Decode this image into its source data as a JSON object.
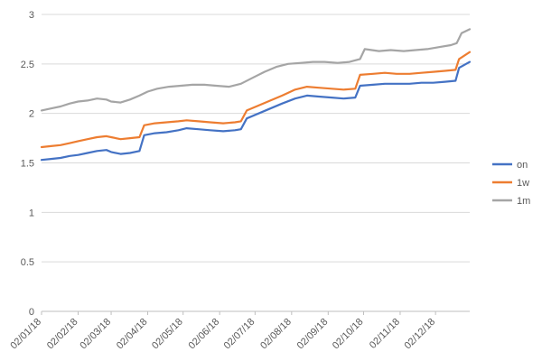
{
  "chart_data": {
    "type": "line",
    "title": "",
    "xlabel": "",
    "ylabel": "",
    "ylim": [
      0,
      3
    ],
    "y_ticks": [
      0,
      0.5,
      1,
      1.5,
      2,
      2.5,
      3
    ],
    "y_tick_labels": [
      "0",
      "0.5",
      "1",
      "1.5",
      "2",
      "2.5",
      "3"
    ],
    "grid": true,
    "legend_position": "right",
    "x_tick_labels": [
      "02/01/18",
      "02/02/18",
      "02/03/18",
      "02/04/18",
      "02/05/18",
      "02/06/18",
      "02/07/18",
      "02/08/18",
      "02/09/18",
      "02/10/18",
      "02/11/18",
      "02/12/18"
    ],
    "x_range": [
      "2018-01-02",
      "2018-12-31"
    ],
    "series": [
      {
        "name": "on",
        "color": "#4472C4",
        "points": [
          [
            "2018-01-02",
            1.53
          ],
          [
            "2018-01-10",
            1.54
          ],
          [
            "2018-01-18",
            1.55
          ],
          [
            "2018-01-26",
            1.57
          ],
          [
            "2018-02-02",
            1.58
          ],
          [
            "2018-02-10",
            1.6
          ],
          [
            "2018-02-18",
            1.62
          ],
          [
            "2018-02-26",
            1.63
          ],
          [
            "2018-03-02",
            1.61
          ],
          [
            "2018-03-10",
            1.59
          ],
          [
            "2018-03-18",
            1.6
          ],
          [
            "2018-03-26",
            1.62
          ],
          [
            "2018-03-30",
            1.78
          ],
          [
            "2018-04-08",
            1.8
          ],
          [
            "2018-04-18",
            1.81
          ],
          [
            "2018-04-28",
            1.83
          ],
          [
            "2018-05-05",
            1.85
          ],
          [
            "2018-05-15",
            1.84
          ],
          [
            "2018-05-25",
            1.83
          ],
          [
            "2018-06-05",
            1.82
          ],
          [
            "2018-06-15",
            1.83
          ],
          [
            "2018-06-20",
            1.84
          ],
          [
            "2018-06-25",
            1.95
          ],
          [
            "2018-07-05",
            2.0
          ],
          [
            "2018-07-15",
            2.05
          ],
          [
            "2018-07-25",
            2.1
          ],
          [
            "2018-08-05",
            2.15
          ],
          [
            "2018-08-15",
            2.18
          ],
          [
            "2018-08-25",
            2.17
          ],
          [
            "2018-09-05",
            2.16
          ],
          [
            "2018-09-15",
            2.15
          ],
          [
            "2018-09-25",
            2.16
          ],
          [
            "2018-09-29",
            2.28
          ],
          [
            "2018-10-10",
            2.29
          ],
          [
            "2018-10-20",
            2.3
          ],
          [
            "2018-10-30",
            2.3
          ],
          [
            "2018-11-10",
            2.3
          ],
          [
            "2018-11-20",
            2.31
          ],
          [
            "2018-11-30",
            2.31
          ],
          [
            "2018-12-10",
            2.32
          ],
          [
            "2018-12-19",
            2.33
          ],
          [
            "2018-12-22",
            2.46
          ],
          [
            "2018-12-31",
            2.52
          ]
        ]
      },
      {
        "name": "1w",
        "color": "#ED7D31",
        "points": [
          [
            "2018-01-02",
            1.66
          ],
          [
            "2018-01-10",
            1.67
          ],
          [
            "2018-01-18",
            1.68
          ],
          [
            "2018-01-26",
            1.7
          ],
          [
            "2018-02-02",
            1.72
          ],
          [
            "2018-02-10",
            1.74
          ],
          [
            "2018-02-18",
            1.76
          ],
          [
            "2018-02-26",
            1.77
          ],
          [
            "2018-03-02",
            1.76
          ],
          [
            "2018-03-10",
            1.74
          ],
          [
            "2018-03-18",
            1.75
          ],
          [
            "2018-03-26",
            1.76
          ],
          [
            "2018-03-30",
            1.88
          ],
          [
            "2018-04-08",
            1.9
          ],
          [
            "2018-04-18",
            1.91
          ],
          [
            "2018-04-28",
            1.92
          ],
          [
            "2018-05-05",
            1.93
          ],
          [
            "2018-05-15",
            1.92
          ],
          [
            "2018-05-25",
            1.91
          ],
          [
            "2018-06-05",
            1.9
          ],
          [
            "2018-06-15",
            1.91
          ],
          [
            "2018-06-20",
            1.92
          ],
          [
            "2018-06-25",
            2.03
          ],
          [
            "2018-07-05",
            2.08
          ],
          [
            "2018-07-15",
            2.13
          ],
          [
            "2018-07-25",
            2.18
          ],
          [
            "2018-08-05",
            2.24
          ],
          [
            "2018-08-15",
            2.27
          ],
          [
            "2018-08-25",
            2.26
          ],
          [
            "2018-09-05",
            2.25
          ],
          [
            "2018-09-15",
            2.24
          ],
          [
            "2018-09-25",
            2.25
          ],
          [
            "2018-09-29",
            2.39
          ],
          [
            "2018-10-10",
            2.4
          ],
          [
            "2018-10-20",
            2.41
          ],
          [
            "2018-10-30",
            2.4
          ],
          [
            "2018-11-10",
            2.4
          ],
          [
            "2018-11-20",
            2.41
          ],
          [
            "2018-11-30",
            2.42
          ],
          [
            "2018-12-10",
            2.43
          ],
          [
            "2018-12-19",
            2.44
          ],
          [
            "2018-12-22",
            2.55
          ],
          [
            "2018-12-31",
            2.62
          ]
        ]
      },
      {
        "name": "1m",
        "color": "#A5A5A5",
        "points": [
          [
            "2018-01-02",
            2.03
          ],
          [
            "2018-01-10",
            2.05
          ],
          [
            "2018-01-18",
            2.07
          ],
          [
            "2018-01-26",
            2.1
          ],
          [
            "2018-02-02",
            2.12
          ],
          [
            "2018-02-10",
            2.13
          ],
          [
            "2018-02-18",
            2.15
          ],
          [
            "2018-02-26",
            2.14
          ],
          [
            "2018-03-02",
            2.12
          ],
          [
            "2018-03-10",
            2.11
          ],
          [
            "2018-03-18",
            2.14
          ],
          [
            "2018-03-26",
            2.18
          ],
          [
            "2018-04-02",
            2.22
          ],
          [
            "2018-04-10",
            2.25
          ],
          [
            "2018-04-20",
            2.27
          ],
          [
            "2018-04-30",
            2.28
          ],
          [
            "2018-05-10",
            2.29
          ],
          [
            "2018-05-20",
            2.29
          ],
          [
            "2018-05-30",
            2.28
          ],
          [
            "2018-06-10",
            2.27
          ],
          [
            "2018-06-20",
            2.3
          ],
          [
            "2018-06-30",
            2.36
          ],
          [
            "2018-07-10",
            2.42
          ],
          [
            "2018-07-20",
            2.47
          ],
          [
            "2018-07-30",
            2.5
          ],
          [
            "2018-08-10",
            2.51
          ],
          [
            "2018-08-20",
            2.52
          ],
          [
            "2018-08-30",
            2.52
          ],
          [
            "2018-09-10",
            2.51
          ],
          [
            "2018-09-20",
            2.52
          ],
          [
            "2018-09-29",
            2.55
          ],
          [
            "2018-10-03",
            2.65
          ],
          [
            "2018-10-15",
            2.63
          ],
          [
            "2018-10-25",
            2.64
          ],
          [
            "2018-11-05",
            2.63
          ],
          [
            "2018-11-15",
            2.64
          ],
          [
            "2018-11-25",
            2.65
          ],
          [
            "2018-12-05",
            2.67
          ],
          [
            "2018-12-15",
            2.69
          ],
          [
            "2018-12-20",
            2.71
          ],
          [
            "2018-12-24",
            2.81
          ],
          [
            "2018-12-31",
            2.85
          ]
        ]
      }
    ]
  }
}
